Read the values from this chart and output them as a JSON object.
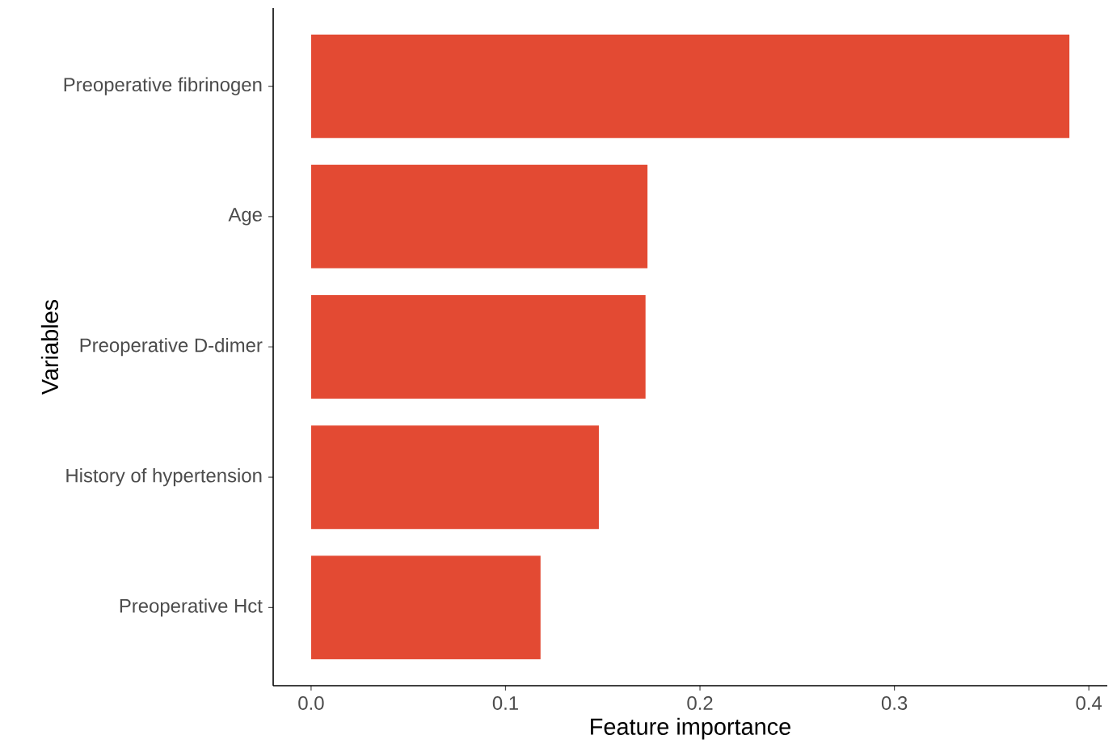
{
  "chart_data": {
    "type": "bar",
    "orientation": "horizontal",
    "xlabel": "Feature importance",
    "ylabel": "Variables",
    "categories": [
      "Preoperative fibrinogen",
      "Age",
      "Preoperative D-dimer",
      "History of hypertension",
      "Preoperative Hct"
    ],
    "values": [
      0.39,
      0.173,
      0.172,
      0.148,
      0.118
    ],
    "color": "#e34a33",
    "xlim": [
      -0.0195,
      0.4095
    ],
    "xticks": [
      {
        "value": 0,
        "label": "0.0"
      },
      0.1,
      0.2,
      0.3,
      0.4
    ]
  }
}
